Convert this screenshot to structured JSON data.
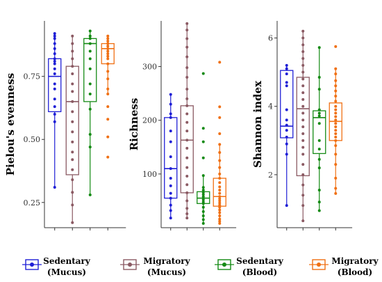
{
  "colors": {
    "sedentary_mucus": "#1f1fd6",
    "migratory_mucus": "#8b5a63",
    "sedentary_blood": "#148a14",
    "migratory_blood": "#f07014"
  },
  "chart_data": [
    {
      "type": "box",
      "ylabel": "Pielou's evenness",
      "ylim": [
        0.15,
        0.97
      ],
      "yticks": [
        0.25,
        0.5,
        0.75
      ],
      "ytick_labels": [
        "0.25",
        "0.50",
        "0.75"
      ],
      "groups": [
        {
          "series": "Sedentary (Mucus)",
          "color": "#1f1fd6",
          "stats": {
            "min": 0.31,
            "q1": 0.61,
            "median": 0.75,
            "q3": 0.82,
            "max": 0.92
          },
          "points": [
            0.92,
            0.91,
            0.9,
            0.88,
            0.86,
            0.84,
            0.82,
            0.81,
            0.8,
            0.78,
            0.76,
            0.72,
            0.7,
            0.66,
            0.63,
            0.6,
            0.57,
            0.31
          ]
        },
        {
          "series": "Migratory (Mucus)",
          "color": "#8b5a63",
          "stats": {
            "min": 0.17,
            "q1": 0.36,
            "median": 0.65,
            "q3": 0.79,
            "max": 0.91
          },
          "points": [
            0.91,
            0.88,
            0.85,
            0.82,
            0.79,
            0.76,
            0.72,
            0.69,
            0.65,
            0.61,
            0.57,
            0.53,
            0.49,
            0.45,
            0.42,
            0.38,
            0.34,
            0.29,
            0.24,
            0.17
          ]
        },
        {
          "series": "Sedentary (Blood)",
          "color": "#148a14",
          "stats": {
            "min": 0.28,
            "q1": 0.65,
            "median": 0.88,
            "q3": 0.9,
            "max": 0.93
          },
          "points": [
            0.93,
            0.91,
            0.9,
            0.88,
            0.85,
            0.82,
            0.78,
            0.72,
            0.68,
            0.62,
            0.52,
            0.47,
            0.28
          ]
        },
        {
          "series": "Migratory (Blood)",
          "color": "#f07014",
          "stats": {
            "min": 0.68,
            "q1": 0.8,
            "median": 0.86,
            "q3": 0.88,
            "max": 0.91
          },
          "points": [
            0.91,
            0.9,
            0.89,
            0.88,
            0.87,
            0.86,
            0.85,
            0.84,
            0.83,
            0.82,
            0.8,
            0.77,
            0.74,
            0.7,
            0.68,
            0.63,
            0.58,
            0.51,
            0.43
          ]
        }
      ]
    },
    {
      "type": "box",
      "ylabel": "Richness",
      "ylim": [
        0,
        385
      ],
      "yticks": [
        100,
        200,
        300
      ],
      "ytick_labels": [
        "100",
        "200",
        "300"
      ],
      "groups": [
        {
          "series": "Sedentary (Mucus)",
          "color": "#1f1fd6",
          "stats": {
            "min": 18,
            "q1": 55,
            "median": 110,
            "q3": 205,
            "max": 248
          },
          "points": [
            248,
            230,
            212,
            205,
            180,
            160,
            132,
            110,
            92,
            78,
            64,
            55,
            42,
            32,
            18
          ]
        },
        {
          "series": "Migratory (Mucus)",
          "color": "#8b5a63",
          "stats": {
            "min": 18,
            "q1": 65,
            "median": 163,
            "q3": 227,
            "max": 380
          },
          "points": [
            380,
            368,
            352,
            336,
            318,
            298,
            280,
            258,
            240,
            227,
            212,
            196,
            180,
            163,
            148,
            130,
            112,
            96,
            80,
            65,
            50,
            36,
            26,
            18
          ]
        },
        {
          "series": "Sedentary (Blood)",
          "color": "#148a14",
          "stats": {
            "min": 8,
            "q1": 45,
            "median": 55,
            "q3": 67,
            "max": 97
          },
          "points": [
            287,
            185,
            160,
            130,
            97,
            75,
            70,
            66,
            62,
            58,
            55,
            52,
            48,
            45,
            38,
            30,
            22,
            15,
            8
          ]
        },
        {
          "series": "Migratory (Blood)",
          "color": "#f07014",
          "stats": {
            "min": 8,
            "q1": 40,
            "median": 58,
            "q3": 92,
            "max": 155
          },
          "points": [
            308,
            225,
            205,
            175,
            155,
            140,
            125,
            112,
            100,
            92,
            84,
            76,
            70,
            64,
            58,
            54,
            50,
            46,
            42,
            38,
            33,
            28,
            22,
            16,
            12,
            8
          ]
        }
      ]
    },
    {
      "type": "box",
      "ylabel": "Shannon index",
      "ylim": [
        0.45,
        6.5
      ],
      "yticks": [
        2,
        4,
        6
      ],
      "ytick_labels": [
        "2",
        "4",
        "6"
      ],
      "groups": [
        {
          "series": "Sedentary (Mucus)",
          "color": "#1f1fd6",
          "stats": {
            "min": 1.1,
            "q1": 3.08,
            "median": 3.42,
            "q3": 5.05,
            "max": 5.22
          },
          "points": [
            5.2,
            5.1,
            4.95,
            4.7,
            4.6,
            3.9,
            3.6,
            3.45,
            3.3,
            3.1,
            2.9,
            2.6,
            1.1
          ]
        },
        {
          "series": "Migratory (Mucus)",
          "color": "#8b5a63",
          "stats": {
            "min": 0.65,
            "q1": 1.97,
            "median": 3.93,
            "q3": 4.85,
            "max": 6.2
          },
          "points": [
            6.2,
            6.0,
            5.8,
            5.6,
            5.4,
            5.2,
            5.0,
            4.8,
            4.6,
            4.4,
            4.2,
            4.0,
            3.8,
            3.6,
            3.4,
            3.2,
            3.0,
            2.8,
            2.6,
            2.3,
            2.0,
            1.7,
            1.4,
            1.1,
            0.65
          ]
        },
        {
          "series": "Sedentary (Blood)",
          "color": "#148a14",
          "stats": {
            "min": 0.95,
            "q1": 2.62,
            "median": 3.67,
            "q3": 3.87,
            "max": 5.72
          },
          "points": [
            5.72,
            4.85,
            4.5,
            3.9,
            3.8,
            3.72,
            3.5,
            3.0,
            2.75,
            2.45,
            2.2,
            1.55,
            1.2,
            0.95
          ]
        },
        {
          "series": "Migratory (Blood)",
          "color": "#f07014",
          "stats": {
            "min": 1.45,
            "q1": 3.0,
            "median": 3.56,
            "q3": 4.1,
            "max": 5.1
          },
          "points": [
            5.75,
            5.1,
            4.95,
            4.75,
            4.6,
            4.45,
            4.3,
            4.15,
            4.0,
            3.9,
            3.8,
            3.7,
            3.6,
            3.5,
            3.4,
            3.3,
            3.2,
            3.1,
            3.0,
            2.85,
            2.6,
            2.3,
            1.9,
            1.6,
            1.45
          ]
        }
      ]
    }
  ],
  "legend": [
    {
      "line1": "Sedentary",
      "line2": "(Mucus)",
      "color": "#1f1fd6"
    },
    {
      "line1": "Migratory",
      "line2": "(Mucus)",
      "color": "#8b5a63"
    },
    {
      "line1": "Sedentary",
      "line2": "(Blood)",
      "color": "#148a14"
    },
    {
      "line1": "Migratory",
      "line2": "(Blood)",
      "color": "#f07014"
    }
  ]
}
